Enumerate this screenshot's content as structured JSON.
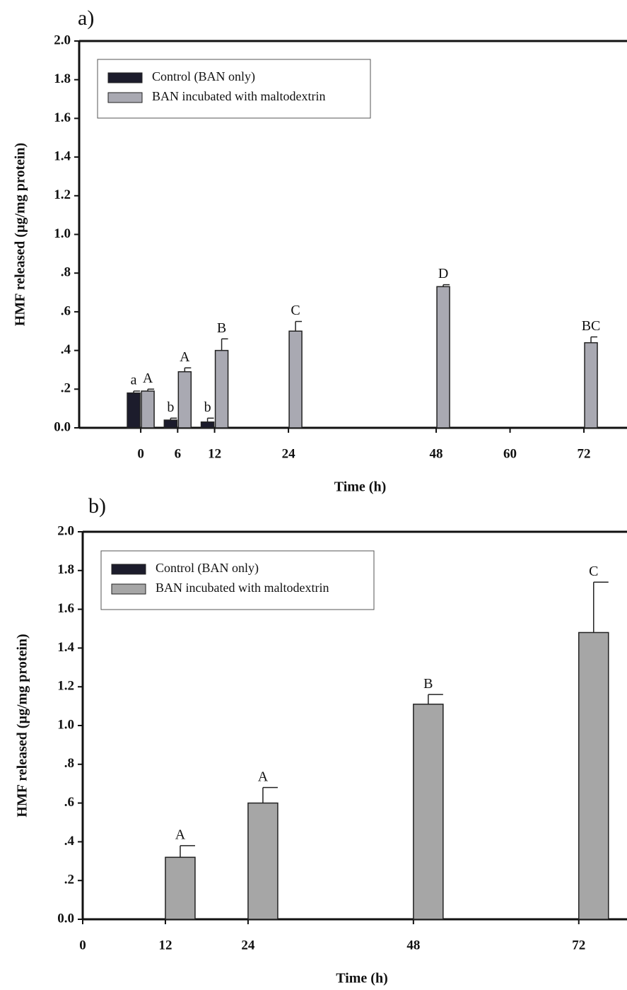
{
  "chart_data": [
    {
      "type": "bar",
      "label": "a)",
      "xlabel": "Time (h)",
      "ylabel": "HMF released (µg/mg protein)",
      "x": [
        0,
        6,
        12,
        24,
        48,
        72
      ],
      "series": [
        {
          "name": "Control (BAN only)",
          "color": "#1c1c2c",
          "values": [
            0.18,
            0.04,
            0.03,
            null,
            null,
            null
          ],
          "errors": [
            0.01,
            0.01,
            0.02,
            null,
            null,
            null
          ],
          "letters": [
            "a",
            "b",
            "b",
            null,
            null,
            null
          ]
        },
        {
          "name": "BAN incubated with maltodextrin",
          "color": "#a9a9b2",
          "values": [
            0.19,
            0.29,
            0.4,
            0.5,
            0.73,
            0.44
          ],
          "errors": [
            0.01,
            0.02,
            0.06,
            0.05,
            0.01,
            0.03
          ],
          "letters": [
            "A",
            "A",
            "B",
            "C",
            "D",
            "BC"
          ]
        }
      ],
      "xlim": [
        -10,
        79
      ],
      "xticks": [
        0,
        6,
        12,
        24,
        48,
        60,
        72
      ],
      "ylim": [
        0,
        2
      ],
      "yticks": [
        {
          "value": 0,
          "label": "0.0"
        },
        {
          "value": 0.2,
          "label": ".2"
        },
        {
          "value": 0.4,
          "label": ".4"
        },
        {
          "value": 0.6,
          "label": ".6"
        },
        {
          "value": 0.8,
          "label": ".8"
        },
        {
          "value": 1,
          "label": "1.0"
        },
        1.2,
        1.4,
        1.6,
        1.8,
        {
          "value": 2,
          "label": "2.0"
        }
      ],
      "legend": "upper left"
    },
    {
      "type": "bar",
      "label": "b)",
      "xlabel": "Time (h)",
      "ylabel": "HMF released (µg/mg protein)",
      "x": [
        12,
        24,
        48,
        72
      ],
      "series": [
        {
          "name": "Control (BAN only)",
          "color": "#1c1c2c",
          "values": [
            null,
            0,
            null,
            null
          ],
          "errors": [
            null,
            null,
            null,
            null
          ],
          "letters": [
            null,
            null,
            null,
            null
          ]
        },
        {
          "name": "BAN incubated with maltodextrin",
          "color": "#a6a6a6",
          "values": [
            0.32,
            0.6,
            1.11,
            1.48
          ],
          "errors": [
            0.06,
            0.08,
            0.05,
            0.26
          ],
          "letters": [
            "A",
            "A",
            "B",
            "C"
          ]
        }
      ],
      "xlim": [
        0,
        79
      ],
      "xticks": [
        0,
        12,
        24,
        48,
        72
      ],
      "ylim": [
        0,
        2
      ],
      "yticks": [
        {
          "value": 0,
          "label": "0.0"
        },
        {
          "value": 0.2,
          "label": ".2"
        },
        {
          "value": 0.4,
          "label": ".4"
        },
        {
          "value": 0.6,
          "label": ".6"
        },
        {
          "value": 0.8,
          "label": ".8"
        },
        {
          "value": 1,
          "label": "1.0"
        },
        1.2,
        1.4,
        1.6,
        1.8,
        {
          "value": 2,
          "label": "2.0"
        }
      ],
      "legend": "upper left"
    }
  ]
}
